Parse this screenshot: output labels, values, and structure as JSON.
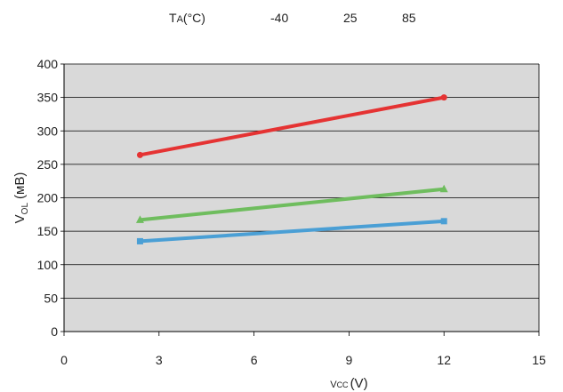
{
  "legend": {
    "label_main": "T",
    "label_sub": "A",
    "label_unit": "(°C)",
    "entries": [
      "-40",
      "25",
      "85"
    ]
  },
  "chart_data": {
    "type": "line",
    "x_label_main": "V",
    "x_label_sub": "CC",
    "x_label_unit": "(V)",
    "y_label_main": "V",
    "y_label_sub": "OL",
    "y_label_unit": "(мВ)",
    "xlim": [
      0,
      15
    ],
    "ylim": [
      0,
      400
    ],
    "x_ticks": [
      "0",
      "3",
      "6",
      "9",
      "12",
      "15"
    ],
    "y_ticks": [
      "0",
      "50",
      "100",
      "150",
      "200",
      "250",
      "300",
      "350",
      "400"
    ],
    "grid": "horizontal",
    "background": "#d9d9d9",
    "series": [
      {
        "name": "-40",
        "color": "#4a9fd5",
        "marker": "square",
        "x": [
          2.4,
          12.0
        ],
        "y": [
          135,
          165
        ]
      },
      {
        "name": "25",
        "color": "#6fbd5e",
        "marker": "triangle",
        "x": [
          2.4,
          12.0
        ],
        "y": [
          167,
          213
        ]
      },
      {
        "name": "85",
        "color": "#e53333",
        "marker": "circle",
        "x": [
          2.4,
          12.0
        ],
        "y": [
          264,
          350
        ]
      }
    ]
  }
}
